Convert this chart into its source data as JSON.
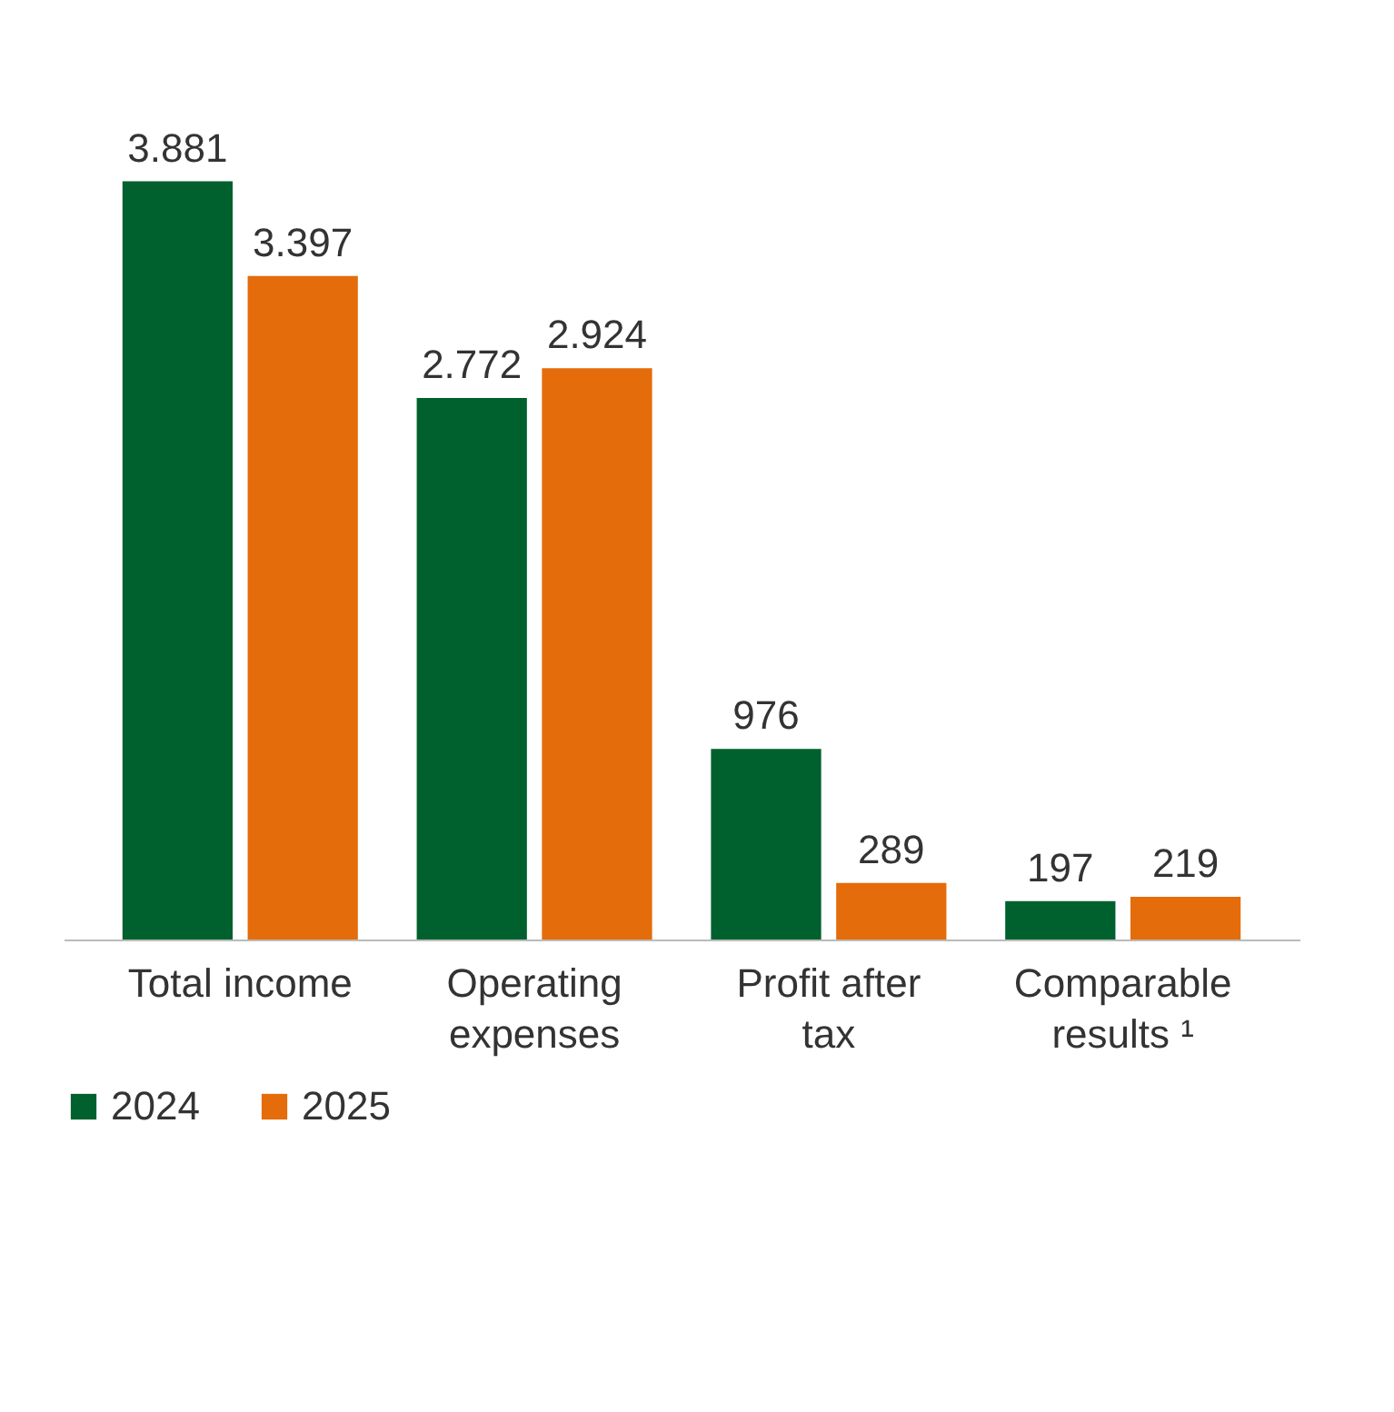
{
  "chart_data": {
    "type": "bar",
    "categories": [
      "Total income",
      "Operating expenses",
      "Profit after tax",
      "Comparable results ¹"
    ],
    "series": [
      {
        "name": "2024",
        "color": "#00612e",
        "values": [
          3881,
          2772,
          976,
          197
        ],
        "value_labels": [
          "3.881",
          "2.772",
          "976",
          "197"
        ]
      },
      {
        "name": "2025",
        "color": "#e46c0a",
        "values": [
          3397,
          2924,
          289,
          219
        ],
        "value_labels": [
          "3.397",
          "2.924",
          "289",
          "219"
        ]
      }
    ],
    "legend": "bottom",
    "grid": false
  }
}
